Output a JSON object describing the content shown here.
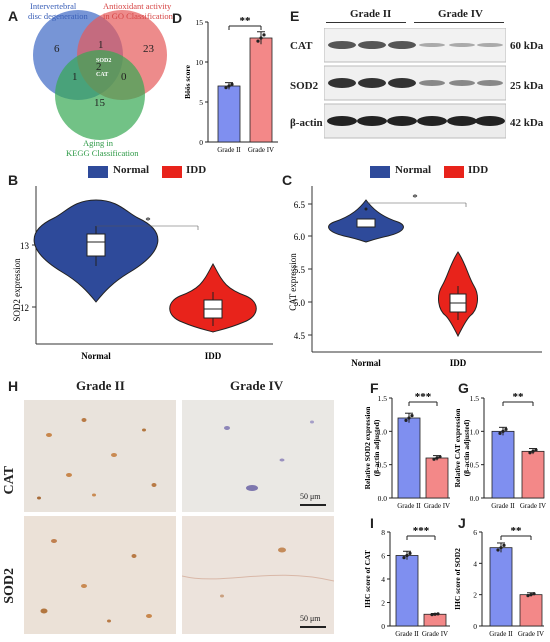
{
  "panels": {
    "A": "A",
    "B": "B",
    "C": "C",
    "D": "D",
    "E": "E",
    "F": "F",
    "G": "G",
    "H": "H",
    "I": "I",
    "J": "J"
  },
  "venn": {
    "set1": {
      "label_lines": [
        "Intervertebral",
        "disc degeneration"
      ],
      "color": "#4a72c8"
    },
    "set2": {
      "label_lines": [
        "Antioxidant activity",
        "in GO Classification"
      ],
      "color": "#e65a5a"
    },
    "set3": {
      "label_lines": [
        "Aging in",
        "KEGG Classification"
      ],
      "color": "#36a852"
    },
    "counts": {
      "only1": "6",
      "only2": "23",
      "only3": "15",
      "s12": "1",
      "s13": "1",
      "s23": "0",
      "all": "2"
    },
    "center_genes": [
      "SOD2",
      "CAT"
    ]
  },
  "legend": {
    "normal": "Normal",
    "idd": "IDD",
    "normal_color": "#2e4a9a",
    "idd_color": "#e8231b"
  },
  "violin_B": {
    "ylabel": "SOD2 expression",
    "yticks": [
      "13",
      "12"
    ],
    "xcats": [
      "Normal",
      "IDD"
    ],
    "sig": "*"
  },
  "violin_C": {
    "ylabel": "CAT expression",
    "yticks": [
      "6.5",
      "6.0",
      "5.5",
      "5.0",
      "4.5"
    ],
    "xcats": [
      "Normal",
      "IDD"
    ],
    "sig": "*"
  },
  "blot": {
    "grades": [
      "Grade II",
      "Grade IV"
    ],
    "rows": [
      {
        "protein": "CAT",
        "size": "60 kDa"
      },
      {
        "protein": "SOD2",
        "size": "25 kDa"
      },
      {
        "protein": "β-actin",
        "size": "42 kDa"
      }
    ]
  },
  "ihc": {
    "grades": [
      "Grade II",
      "Grade IV"
    ],
    "rows": [
      "CAT",
      "SOD2"
    ],
    "scale": "50 μm"
  },
  "chart_data": [
    {
      "panel": "D",
      "type": "bar",
      "categories": [
        "Grade II",
        "Grade IV"
      ],
      "values": [
        7,
        13
      ],
      "ylabel": "Böös score",
      "ylim": [
        0,
        15
      ],
      "yticks": [
        "0",
        "5",
        "10",
        "15"
      ],
      "sig": "**"
    },
    {
      "panel": "F",
      "type": "bar",
      "categories": [
        "Grade II",
        "Grade IV"
      ],
      "values": [
        1.2,
        0.6
      ],
      "ylabel": "Relative SOD2 expression (β-actin adjusted)",
      "ylim": [
        0,
        1.5
      ],
      "yticks": [
        "0.0",
        "0.5",
        "1.0",
        "1.5"
      ],
      "sig": "***"
    },
    {
      "panel": "G",
      "type": "bar",
      "categories": [
        "Grade II",
        "Grade IV"
      ],
      "values": [
        1.0,
        0.7
      ],
      "ylabel": "Relative CAT expression (β-actin adjusted)",
      "ylim": [
        0,
        1.5
      ],
      "yticks": [
        "0.0",
        "0.5",
        "1.0",
        "1.5"
      ],
      "sig": "**"
    },
    {
      "panel": "I",
      "type": "bar",
      "categories": [
        "Grade II",
        "Grade IV"
      ],
      "values": [
        6,
        1
      ],
      "ylabel": "IHC score of CAT",
      "ylim": [
        0,
        8
      ],
      "yticks": [
        "0",
        "2",
        "4",
        "6",
        "8"
      ],
      "sig": "***"
    },
    {
      "panel": "J",
      "type": "bar",
      "categories": [
        "Grade II",
        "Grade IV"
      ],
      "values": [
        5,
        2
      ],
      "ylabel": "IHC score of SOD2",
      "ylim": [
        0,
        6
      ],
      "yticks": [
        "0",
        "2",
        "4",
        "6"
      ],
      "sig": "**"
    }
  ]
}
